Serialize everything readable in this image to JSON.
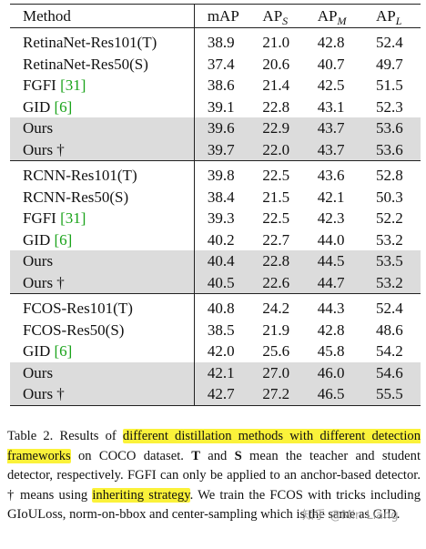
{
  "table": {
    "headers": {
      "method": "Method",
      "map": "mAP",
      "aps": "AP",
      "aps_sub": "S",
      "apm": "AP",
      "apm_sub": "M",
      "apl": "AP",
      "apl_sub": "L"
    },
    "groups": [
      {
        "rows": [
          {
            "method": "RetinaNet-Res101(T)",
            "ref": "",
            "map": "38.9",
            "aps": "21.0",
            "apm": "42.8",
            "apl": "52.4",
            "shaded": false
          },
          {
            "method": "RetinaNet-Res50(S)",
            "ref": "",
            "map": "37.4",
            "aps": "20.6",
            "apm": "40.7",
            "apl": "49.7",
            "shaded": false
          },
          {
            "method": "FGFI ",
            "ref": "[31]",
            "map": "38.6",
            "aps": "21.4",
            "apm": "42.5",
            "apl": "51.5",
            "shaded": false
          },
          {
            "method": "GID ",
            "ref": "[6]",
            "map": "39.1",
            "aps": "22.8",
            "apm": "43.1",
            "apl": "52.3",
            "shaded": false
          },
          {
            "method": "Ours",
            "ref": "",
            "map": "39.6",
            "aps": "22.9",
            "apm": "43.7",
            "apl": "53.6",
            "shaded": true
          },
          {
            "method": "Ours †",
            "ref": "",
            "map": "39.7",
            "aps": "22.0",
            "apm": "43.7",
            "apl": "53.6",
            "shaded": true
          }
        ]
      },
      {
        "rows": [
          {
            "method": "RCNN-Res101(T)",
            "ref": "",
            "map": "39.8",
            "aps": "22.5",
            "apm": "43.6",
            "apl": "52.8",
            "shaded": false
          },
          {
            "method": "RCNN-Res50(S)",
            "ref": "",
            "map": "38.4",
            "aps": "21.5",
            "apm": "42.1",
            "apl": "50.3",
            "shaded": false
          },
          {
            "method": "FGFI ",
            "ref": "[31]",
            "map": "39.3",
            "aps": "22.5",
            "apm": "42.3",
            "apl": "52.2",
            "shaded": false
          },
          {
            "method": "GID ",
            "ref": "[6]",
            "map": "40.2",
            "aps": "22.7",
            "apm": "44.0",
            "apl": "53.2",
            "shaded": false
          },
          {
            "method": "Ours",
            "ref": "",
            "map": "40.4",
            "aps": "22.8",
            "apm": "44.5",
            "apl": "53.5",
            "shaded": true
          },
          {
            "method": "Ours †",
            "ref": "",
            "map": "40.5",
            "aps": "22.6",
            "apm": "44.7",
            "apl": "53.2",
            "shaded": true
          }
        ]
      },
      {
        "rows": [
          {
            "method": "FCOS-Res101(T)",
            "ref": "",
            "map": "40.8",
            "aps": "24.2",
            "apm": "44.3",
            "apl": "52.4",
            "shaded": false
          },
          {
            "method": "FCOS-Res50(S)",
            "ref": "",
            "map": "38.5",
            "aps": "21.9",
            "apm": "42.8",
            "apl": "48.6",
            "shaded": false
          },
          {
            "method": "GID ",
            "ref": "[6]",
            "map": "42.0",
            "aps": "25.6",
            "apm": "45.8",
            "apl": "54.2",
            "shaded": false
          },
          {
            "method": "Ours",
            "ref": "",
            "map": "42.1",
            "aps": "27.0",
            "apm": "46.0",
            "apl": "54.6",
            "shaded": true
          },
          {
            "method": "Ours †",
            "ref": "",
            "map": "42.7",
            "aps": "27.2",
            "apm": "46.5",
            "apl": "55.5",
            "shaded": true
          }
        ]
      }
    ]
  },
  "caption": {
    "lead": "Table 2.  Results of ",
    "hl1": "different distillation methods with different detection frameworks",
    "p2": " on COCO dataset. ",
    "t_bold": "T",
    "p3": " and ",
    "s_bold": "S",
    "p4": " mean the teacher and student detector, respectively.  FGFI can only be applied to an anchor-based detector. † means using ",
    "hl2": "inheriting strategy",
    "p5": ". We train the FCOS with tricks including GIoULoss, norm-on-bbox and center-sampling which is the same as GID."
  },
  "watermark": {
    "text": "知乎 @Min Liang"
  },
  "colors": {
    "highlight": "#fbf23a",
    "shade": "#dcdcdc",
    "ref_green": "#1aa31a"
  }
}
